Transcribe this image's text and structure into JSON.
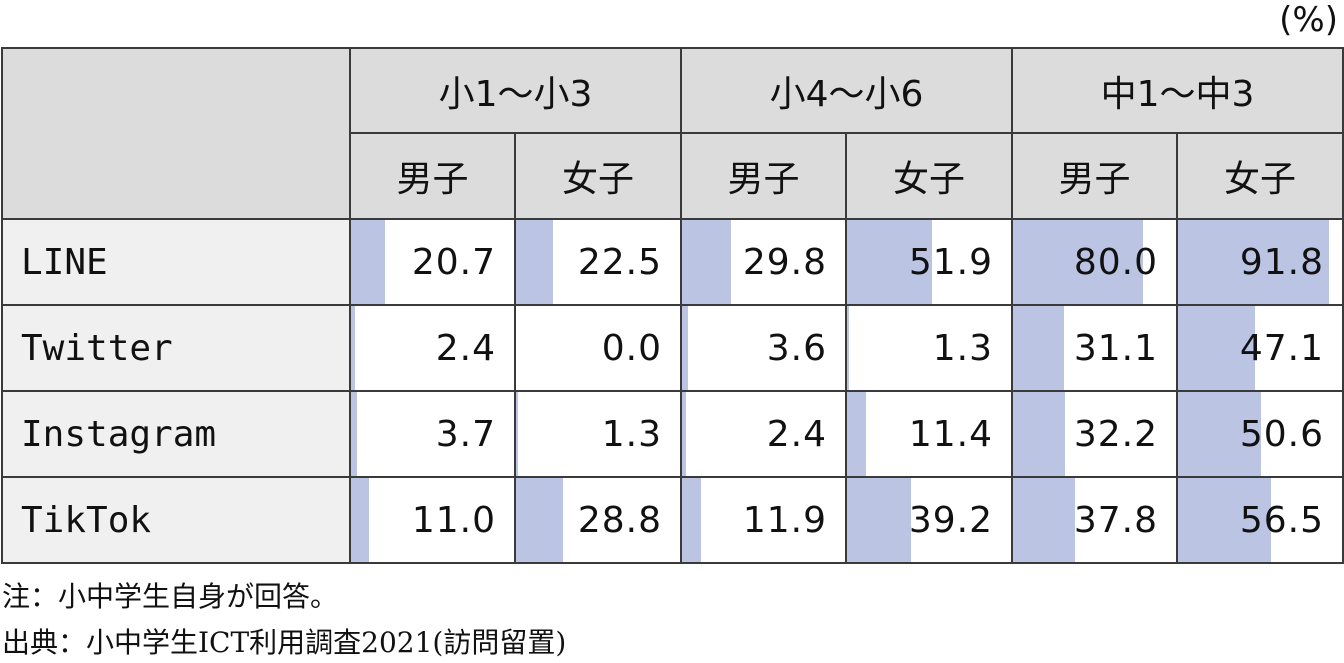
{
  "unit_label": "(%)",
  "chart_data": {
    "type": "table",
    "groups": [
      "小1〜小3",
      "小4〜小6",
      "中1〜中3"
    ],
    "subgroups": [
      "男子",
      "女子"
    ],
    "value_max": 100,
    "rows": [
      {
        "label": "LINE",
        "values": [
          "20.7",
          "22.5",
          "29.8",
          "51.9",
          "80.0",
          "91.8"
        ]
      },
      {
        "label": "Twitter",
        "values": [
          "2.4",
          "0.0",
          "3.6",
          "1.3",
          "31.1",
          "47.1"
        ]
      },
      {
        "label": "Instagram",
        "values": [
          "3.7",
          "1.3",
          "2.4",
          "11.4",
          "32.2",
          "50.6"
        ]
      },
      {
        "label": "TikTok",
        "values": [
          "11.0",
          "28.8",
          "11.9",
          "39.2",
          "37.8",
          "56.5"
        ]
      }
    ]
  },
  "notes": {
    "note1": "注：小中学生自身が回答。",
    "source": "出典：小中学生ICT利用調査2021(訪問留置)"
  },
  "colors": {
    "bar": "#bcc4e4",
    "header_bg": "#dcdcdc",
    "label_bg": "#f0f0f0"
  }
}
